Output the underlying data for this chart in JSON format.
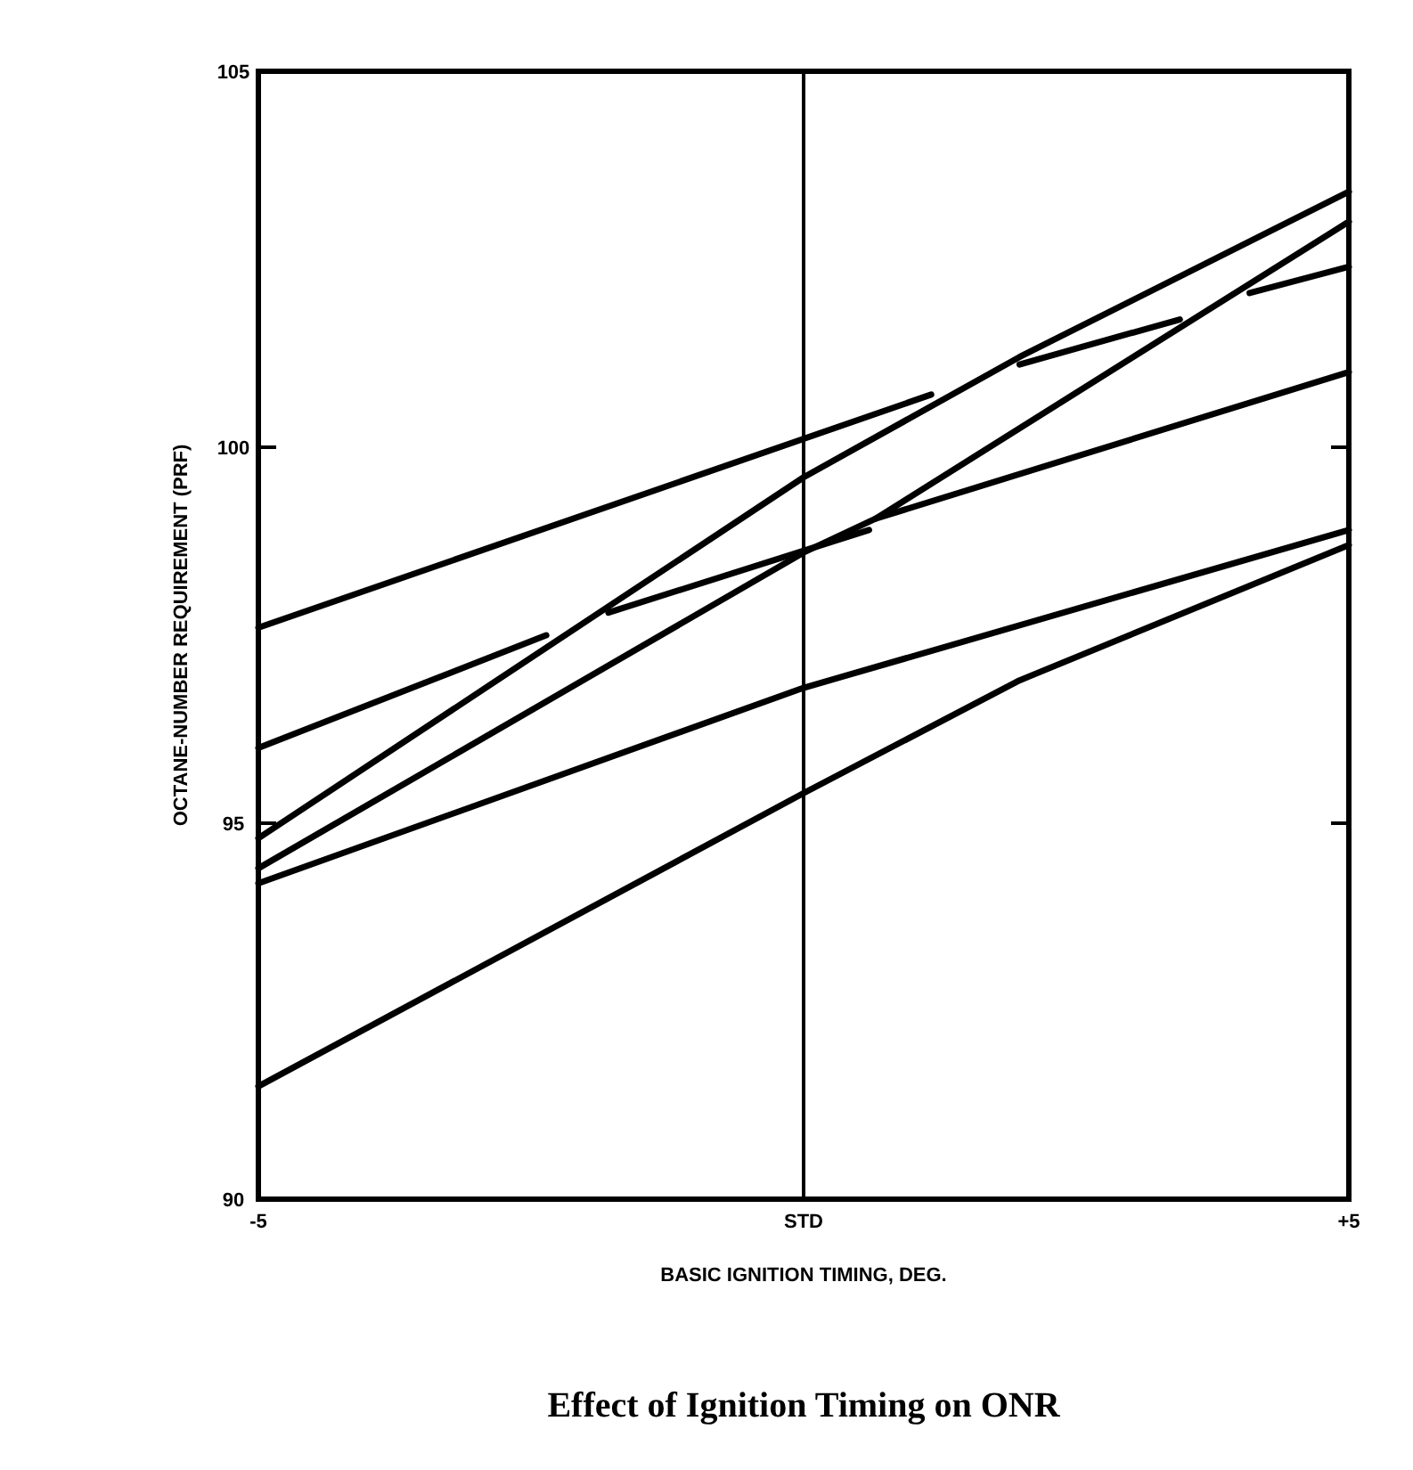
{
  "chart_data": {
    "type": "line",
    "title": "Effect of Ignition Timing on ONR",
    "xlabel": "BASIC IGNITION TIMING, DEG.",
    "ylabel": "OCTANE-NUMBER REQUIREMENT (PRF)",
    "xlim": [
      -5,
      5
    ],
    "xticks": [
      {
        "value": -5,
        "label": "-5"
      },
      {
        "value": 0,
        "label": "STD"
      },
      {
        "value": 5,
        "label": "+5"
      }
    ],
    "ylim": [
      90,
      105
    ],
    "yticks": [
      90,
      95,
      100,
      105
    ],
    "grid": false,
    "marker": "none",
    "line_style": "solid",
    "ref_lines": [
      {
        "axis": "x",
        "value": 0,
        "color": "#000000"
      }
    ],
    "series": [
      {
        "color": "#000000",
        "x": [
          -5,
          1.17
        ],
        "values": [
          97.6,
          100.7
        ]
      },
      {
        "color": "#000000",
        "x": [
          -5,
          0,
          1.98,
          5
        ],
        "values": [
          94.8,
          99.6,
          101.2,
          103.4
        ]
      },
      {
        "color": "#000000",
        "x": [
          1.98,
          3.45
        ],
        "values": [
          101.1,
          101.7
        ]
      },
      {
        "color": "#000000",
        "x": [
          4.09,
          5
        ],
        "values": [
          102.05,
          102.4
        ]
      },
      {
        "color": "#000000",
        "x": [
          -5,
          0,
          0.66,
          5
        ],
        "values": [
          94.4,
          98.6,
          99.05,
          103
        ]
      },
      {
        "color": "#000000",
        "x": [
          -5,
          -2.36
        ],
        "values": [
          96,
          97.5
        ]
      },
      {
        "color": "#000000",
        "x": [
          -1.79,
          0.6
        ],
        "values": [
          97.8,
          98.9
        ]
      },
      {
        "color": "#000000",
        "x": [
          0.66,
          5
        ],
        "values": [
          99.05,
          101
        ]
      },
      {
        "color": "#000000",
        "x": [
          -5,
          0,
          5
        ],
        "values": [
          94.2,
          96.8,
          98.9
        ]
      },
      {
        "color": "#000000",
        "x": [
          -5,
          0,
          1.98,
          5
        ],
        "values": [
          91.5,
          95.4,
          96.9,
          98.7
        ]
      }
    ]
  }
}
